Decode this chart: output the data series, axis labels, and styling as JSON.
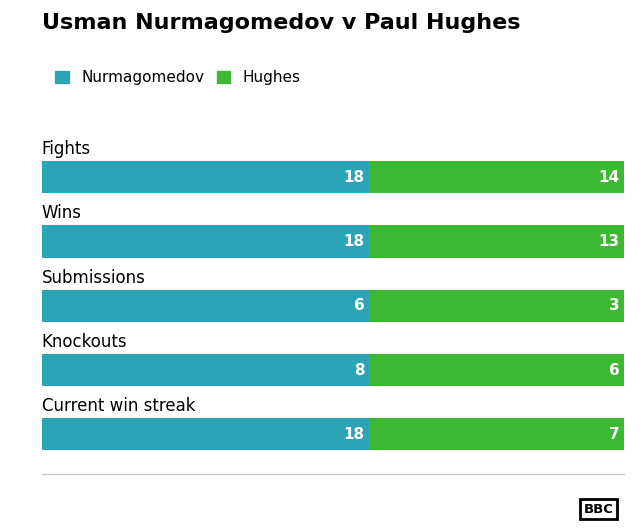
{
  "title": "Usman Nurmagomedov v Paul Hughes",
  "categories": [
    "Fights",
    "Wins",
    "Submissions",
    "Knockouts",
    "Current win streak"
  ],
  "nurmagomedov_values": [
    18,
    18,
    6,
    8,
    18
  ],
  "hughes_values": [
    14,
    13,
    3,
    6,
    7
  ],
  "nurmagomedov_color": "#2ba5b5",
  "hughes_color": "#3cb832",
  "background_color": "#ffffff",
  "text_color": "#ffffff",
  "label_color": "#000000",
  "title_fontsize": 16,
  "label_fontsize": 12,
  "value_fontsize": 11,
  "legend_label_nurmagomedov": "Nurmagomedov",
  "legend_label_hughes": "Hughes",
  "bar_height": 0.5,
  "max_value": 18,
  "fixed_split": 0.5625
}
